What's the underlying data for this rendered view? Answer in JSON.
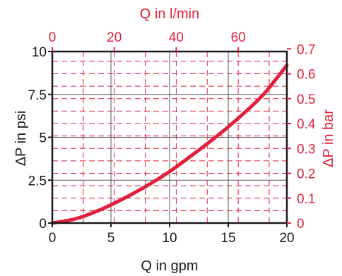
{
  "chart_data": {
    "type": "line",
    "colors": {
      "curve": "#e0203c",
      "secondary_axis": "#e0203c",
      "primary_axis": "#1a1a1a",
      "primary_grid": "#555555",
      "secondary_grid": "#e0203c"
    },
    "grid": true,
    "primary": {
      "xlabel": "Q in gpm",
      "ylabel": "ΔP in psi",
      "xlim": [
        0,
        20
      ],
      "ylim": [
        0,
        10
      ],
      "xticks": [
        0,
        5,
        10,
        15,
        20
      ],
      "yticks": [
        0,
        2.5,
        5,
        7.5,
        10
      ],
      "xtick_labels": [
        "0",
        "5",
        "10",
        "15",
        "20"
      ],
      "ytick_labels": [
        "0",
        "2.5",
        "5",
        "7.5",
        "10"
      ]
    },
    "secondary": {
      "xlabel": "Q in l/min",
      "ylabel": "ΔP in bar",
      "xlim": [
        0,
        75.7
      ],
      "ylim": [
        0,
        0.6895
      ],
      "xticks": [
        0,
        20,
        40,
        60
      ],
      "yticks": [
        0,
        0.1,
        0.2,
        0.3,
        0.4,
        0.5,
        0.6,
        0.7
      ],
      "xtick_labels": [
        "0",
        "20",
        "40",
        "60"
      ],
      "ytick_labels": [
        "0",
        "0.1",
        "0.2",
        "0.3",
        "0.4",
        "0.5",
        "0.6",
        "0.7"
      ]
    },
    "series": [
      {
        "x": [
          0,
          2,
          4,
          6,
          8,
          10,
          12,
          14,
          16,
          18,
          20
        ],
        "y": [
          0,
          0.25,
          0.75,
          1.4,
          2.15,
          3.0,
          4.0,
          5.05,
          6.2,
          7.5,
          9.2
        ]
      }
    ]
  }
}
